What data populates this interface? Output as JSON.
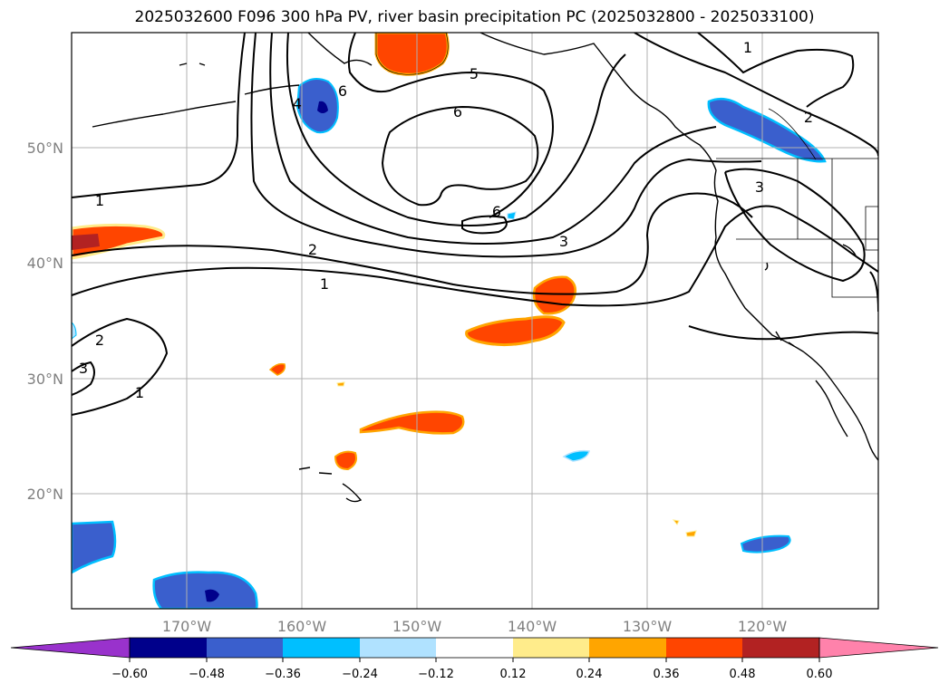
{
  "title": "2025032600 F096 300 hPa PV, river basin precipitation PC (2025032800 - 2025033100)",
  "map": {
    "lon_range": [
      -180,
      -110
    ],
    "lat_range": [
      10,
      60
    ],
    "lat_ticks": [
      {
        "value": 50,
        "label": "50°N"
      },
      {
        "value": 40,
        "label": "40°N"
      },
      {
        "value": 30,
        "label": "30°N"
      },
      {
        "value": 20,
        "label": "20°N"
      }
    ],
    "lon_ticks": [
      {
        "value": -170,
        "label": "170°W"
      },
      {
        "value": -160,
        "label": "160°W"
      },
      {
        "value": -150,
        "label": "150°W"
      },
      {
        "value": -140,
        "label": "140°W"
      },
      {
        "value": -130,
        "label": "130°W"
      },
      {
        "value": -120,
        "label": "120°W"
      }
    ],
    "contour_labels": [
      "1",
      "1",
      "1",
      "1",
      "2",
      "2",
      "2",
      "3",
      "3",
      "3",
      "4",
      "5",
      "6",
      "6",
      "6"
    ]
  },
  "colorbar": {
    "colors": [
      "#9932cc",
      "#00008b",
      "#3a5fcd",
      "#00bfff",
      "#b0e2ff",
      "#ffffff",
      "#ffec8b",
      "#ffa500",
      "#ff4500",
      "#b22222",
      "#ff82ab"
    ],
    "ticks": [
      "−0.60",
      "−0.48",
      "−0.36",
      "−0.24",
      "−0.12",
      "0.12",
      "0.24",
      "0.36",
      "0.48",
      "0.60"
    ]
  }
}
